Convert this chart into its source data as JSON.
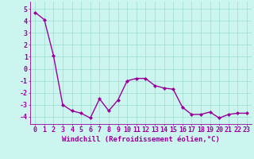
{
  "x": [
    0,
    1,
    2,
    3,
    4,
    5,
    6,
    7,
    8,
    9,
    10,
    11,
    12,
    13,
    14,
    15,
    16,
    17,
    18,
    19,
    20,
    21,
    22,
    23
  ],
  "y": [
    4.7,
    4.1,
    1.1,
    -3.0,
    -3.5,
    -3.7,
    -4.1,
    -2.5,
    -3.5,
    -2.6,
    -1.0,
    -0.8,
    -0.8,
    -1.4,
    -1.6,
    -1.7,
    -3.2,
    -3.8,
    -3.8,
    -3.6,
    -4.1,
    -3.8,
    -3.7,
    -3.7
  ],
  "line_color": "#990099",
  "marker": "D",
  "marker_size": 2.0,
  "bg_color": "#ccf5f0",
  "grid_color": "#99ddcc",
  "xlabel": "Windchill (Refroidissement éolien,°C)",
  "xlabel_fontsize": 6.5,
  "xtick_labels": [
    "0",
    "1",
    "2",
    "3",
    "4",
    "5",
    "6",
    "7",
    "8",
    "9",
    "10",
    "11",
    "12",
    "13",
    "14",
    "15",
    "16",
    "17",
    "18",
    "19",
    "20",
    "21",
    "22",
    "23"
  ],
  "ytick_values": [
    -4,
    -3,
    -2,
    -1,
    0,
    1,
    2,
    3,
    4,
    5
  ],
  "ylim": [
    -4.6,
    5.6
  ],
  "xlim": [
    -0.5,
    23.5
  ],
  "tick_color": "#990099",
  "tick_fontsize": 6.0,
  "linewidth": 1.0
}
